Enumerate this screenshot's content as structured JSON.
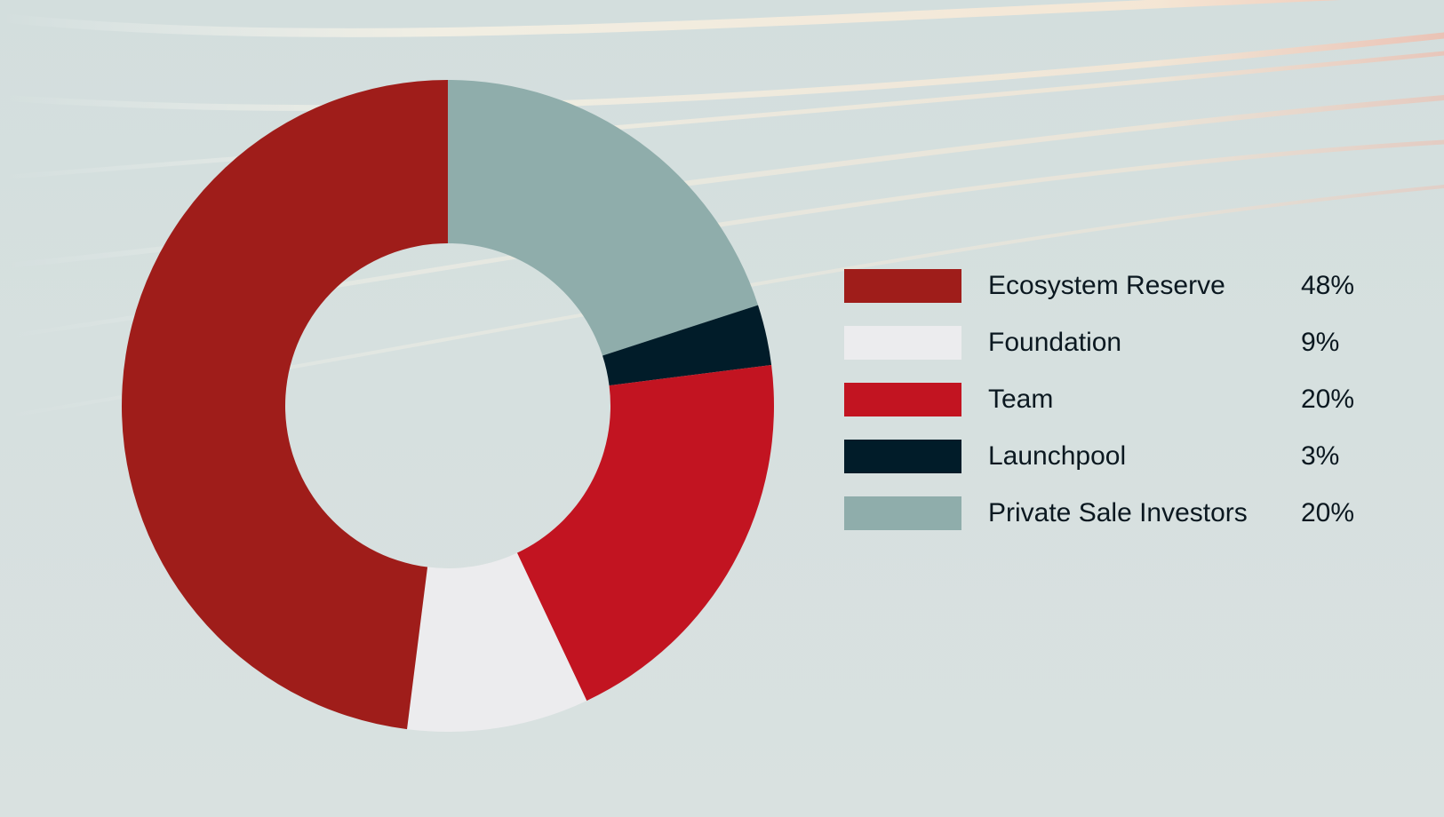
{
  "chart_data": {
    "type": "pie",
    "donut": true,
    "legend_position": "right",
    "slices": [
      {
        "label": "Private Sale Investors",
        "value": 20,
        "display": "20%",
        "color": "#8fadab"
      },
      {
        "label": "Launchpool",
        "value": 3,
        "display": "3%",
        "color": "#011c29"
      },
      {
        "label": "Team",
        "value": 20,
        "display": "20%",
        "color": "#c21421"
      },
      {
        "label": "Foundation",
        "value": 9,
        "display": "9%",
        "color": "#ececee"
      },
      {
        "label": "Ecosystem Reserve",
        "value": 48,
        "display": "48%",
        "color": "#9f1d1a"
      }
    ],
    "legend": [
      {
        "label": "Ecosystem Reserve",
        "display": "48%",
        "color": "#9f1d1a"
      },
      {
        "label": "Foundation",
        "display": "9%",
        "color": "#ececee"
      },
      {
        "label": "Team",
        "display": "20%",
        "color": "#c21421"
      },
      {
        "label": "Launchpool",
        "display": "3%",
        "color": "#011c29"
      },
      {
        "label": "Private Sale Investors",
        "display": "20%",
        "color": "#8fadab"
      }
    ]
  }
}
